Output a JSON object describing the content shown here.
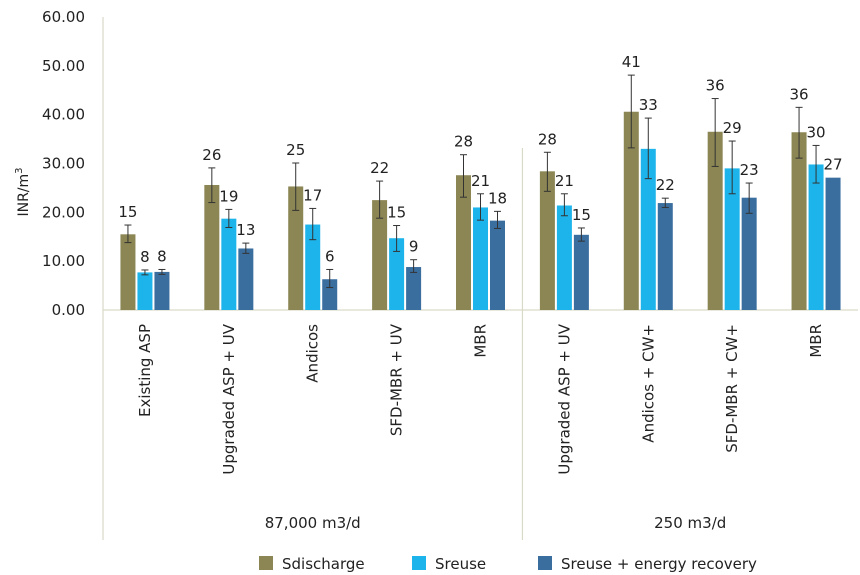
{
  "chart_data": {
    "type": "bar",
    "ylabel": "INR/m",
    "ylabel_sup": "3",
    "ylim": [
      0,
      60
    ],
    "yticks": [
      "0.00",
      "10.00",
      "20.00",
      "30.00",
      "40.00",
      "50.00",
      "60.00"
    ],
    "yticks_values": [
      0,
      10,
      20,
      30,
      40,
      50,
      60
    ],
    "grid": false,
    "legend_position": "bottom",
    "groups": [
      {
        "label": "87,000 m3/d",
        "categories": [
          "Existing ASP",
          "Upgraded ASP + UV",
          "Andicos",
          "SFD-MBR + UV",
          "MBR"
        ]
      },
      {
        "label": "250 m3/d",
        "categories": [
          "Upgraded ASP + UV",
          "Andicos + CW+",
          "SFD-MBR + CW+",
          "MBR"
        ]
      }
    ],
    "categories": [
      "Existing ASP",
      "Upgraded ASP + UV",
      "Andicos",
      "SFD-MBR + UV",
      "MBR",
      "Upgraded ASP + UV",
      "Andicos + CW+",
      "SFD-MBR + CW+",
      "MBR"
    ],
    "series": [
      {
        "name": "Sdischarge",
        "color": "#8b8654",
        "values": [
          15.5,
          25.6,
          25.3,
          22.5,
          27.6,
          28.4,
          40.6,
          36.5,
          36.4
        ],
        "labels": [
          "15",
          "26",
          "25",
          "22",
          "28",
          "28",
          "41",
          "36",
          "36"
        ],
        "err": [
          [
            13.8,
            17.4
          ],
          [
            22.0,
            29.1
          ],
          [
            20.4,
            30.1
          ],
          [
            18.8,
            26.4
          ],
          [
            23.1,
            31.8
          ],
          [
            24.3,
            32.3
          ],
          [
            33.2,
            48.1
          ],
          [
            29.4,
            43.3
          ],
          [
            31.1,
            41.5
          ]
        ]
      },
      {
        "name": "Sreuse",
        "color": "#1cb4ea",
        "values": [
          7.7,
          18.7,
          17.5,
          14.7,
          21.0,
          21.4,
          33.0,
          29.0,
          29.8
        ],
        "labels": [
          "8",
          "19",
          "17",
          "15",
          "21",
          "21",
          "33",
          "29",
          "30"
        ],
        "err": [
          [
            7.2,
            8.2
          ],
          [
            16.9,
            20.6
          ],
          [
            14.4,
            20.8
          ],
          [
            12.0,
            17.3
          ],
          [
            18.4,
            23.8
          ],
          [
            19.3,
            23.8
          ],
          [
            26.9,
            39.3
          ],
          [
            23.8,
            34.6
          ],
          [
            26.0,
            33.7
          ]
        ]
      },
      {
        "name": "Sreuse + energy recovery",
        "color": "#3a6e9f",
        "values": [
          7.8,
          12.6,
          6.3,
          8.8,
          18.3,
          15.4,
          21.9,
          23.0,
          27.1
        ],
        "labels": [
          "8",
          "13",
          "6",
          "9",
          "18",
          "15",
          "22",
          "23",
          "27"
        ],
        "err": [
          [
            7.3,
            8.3
          ],
          [
            11.6,
            13.7
          ],
          [
            4.6,
            8.3
          ],
          [
            7.7,
            10.3
          ],
          [
            16.7,
            20.2
          ],
          [
            14.1,
            16.8
          ],
          [
            21.0,
            22.9
          ],
          [
            19.8,
            26.0
          ],
          null
        ]
      }
    ]
  }
}
